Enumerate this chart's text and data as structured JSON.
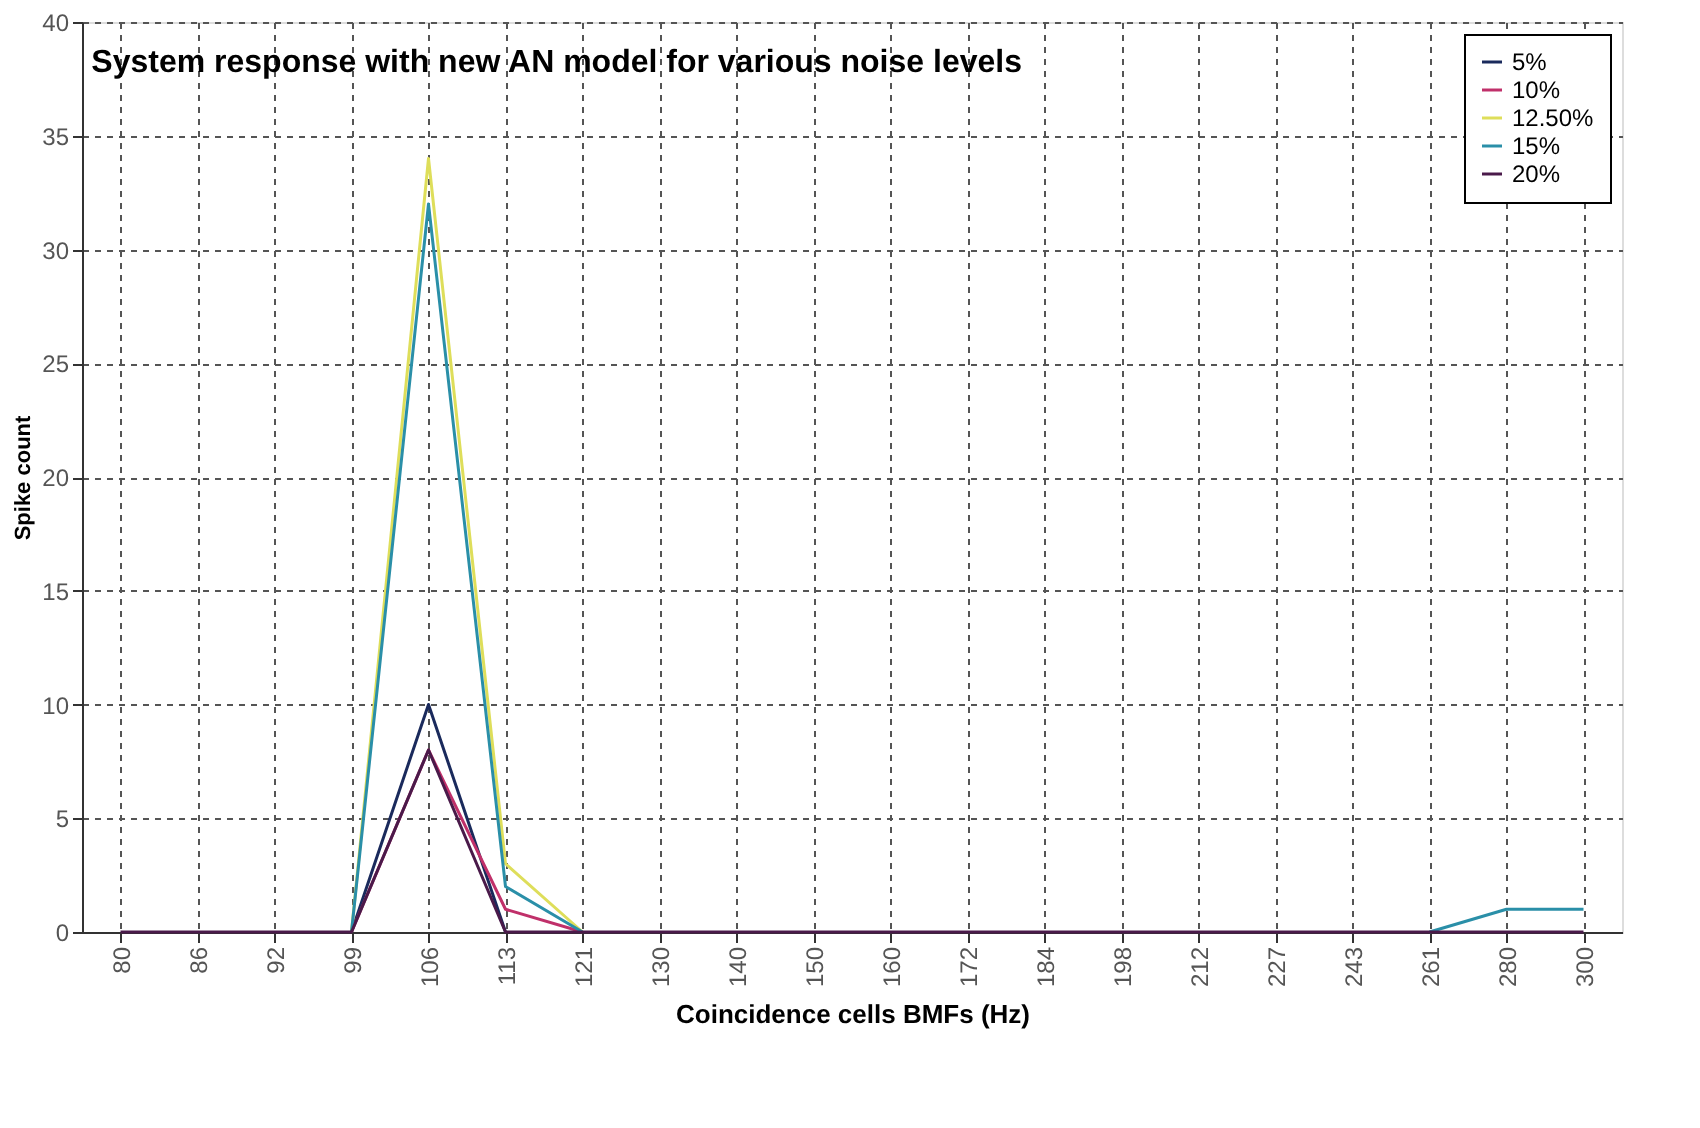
{
  "chart_data": {
    "type": "line",
    "title": "System response with new AN model for various noise levels",
    "xlabel": "Coincidence cells BMFs (Hz)",
    "ylabel": "Spike count",
    "categories": [
      "80",
      "86",
      "92",
      "99",
      "106",
      "113",
      "121",
      "130",
      "140",
      "150",
      "160",
      "172",
      "184",
      "198",
      "212",
      "227",
      "243",
      "261",
      "280",
      "300"
    ],
    "series": [
      {
        "name": "5%",
        "color": "#1a2a5c",
        "values": [
          null,
          null,
          null,
          0,
          10,
          0,
          null,
          null,
          null,
          null,
          null,
          null,
          null,
          null,
          null,
          null,
          null,
          null,
          null,
          null
        ]
      },
      {
        "name": "10%",
        "color": "#c0306a",
        "values": [
          null,
          null,
          null,
          0,
          8,
          1,
          0,
          null,
          null,
          null,
          null,
          null,
          null,
          null,
          null,
          null,
          null,
          null,
          null,
          null
        ]
      },
      {
        "name": "12.50%",
        "color": "#dede5a",
        "values": [
          null,
          null,
          null,
          0,
          34,
          3,
          0,
          null,
          null,
          null,
          null,
          null,
          null,
          null,
          null,
          null,
          null,
          null,
          null,
          null
        ]
      },
      {
        "name": "15%",
        "color": "#2a8fa8",
        "values": [
          null,
          null,
          null,
          0,
          32,
          2,
          0,
          null,
          null,
          null,
          null,
          null,
          null,
          null,
          null,
          null,
          null,
          0,
          1,
          1
        ]
      },
      {
        "name": "20%",
        "color": "#4a1a4a",
        "values": [
          0,
          0,
          0,
          0,
          8,
          0,
          0,
          0,
          0,
          0,
          0,
          0,
          0,
          0,
          0,
          0,
          0,
          0,
          0,
          0
        ]
      }
    ],
    "ylim": [
      0,
      40
    ],
    "yticks": [
      0,
      5,
      10,
      15,
      20,
      25,
      30,
      35,
      40
    ],
    "grid": true,
    "legend": "top right",
    "marker": "none",
    "line_style": "solid"
  }
}
